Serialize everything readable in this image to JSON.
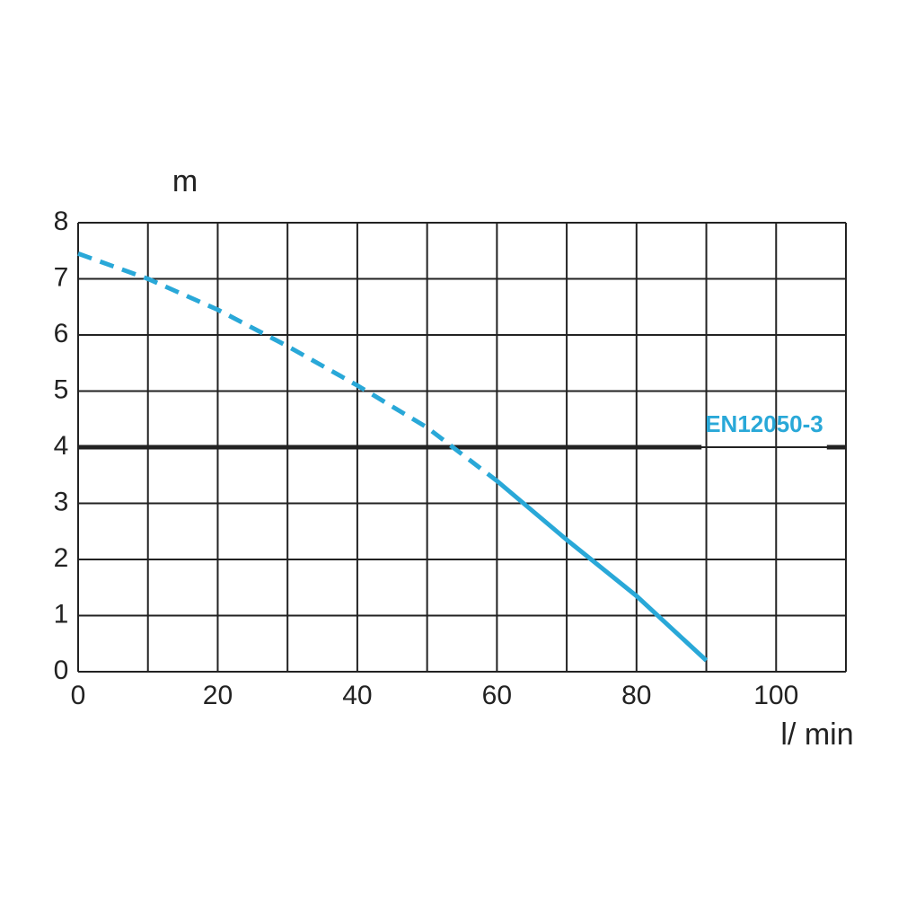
{
  "chart_data": {
    "type": "line",
    "y_label": "m",
    "x_label": "l/ min",
    "x": [
      0,
      10,
      20,
      30,
      40,
      50,
      60,
      70,
      80,
      90
    ],
    "series": [
      {
        "color": "#29a8d8",
        "dashed": true,
        "values": [
          7.45,
          7.0,
          6.45,
          5.8,
          5.1,
          4.35,
          3.4,
          null,
          null,
          null
        ]
      },
      {
        "color": "#29a8d8",
        "dashed": false,
        "values": [
          null,
          null,
          null,
          null,
          null,
          null,
          3.4,
          2.35,
          1.35,
          0.2
        ]
      }
    ],
    "xlim": [
      0,
      110
    ],
    "ylim": [
      0,
      8
    ],
    "xticks": [
      0,
      20,
      40,
      60,
      80,
      100
    ],
    "yticks": [
      0,
      1,
      2,
      3,
      4,
      5,
      6,
      7,
      8
    ],
    "xgrid": [
      0,
      10,
      20,
      30,
      40,
      50,
      60,
      70,
      80,
      90,
      100,
      110
    ],
    "grid": true,
    "reference_line": {
      "value": 4,
      "label": "EN12050-3",
      "color": "#222222",
      "label_color": "#29a8d8"
    }
  }
}
